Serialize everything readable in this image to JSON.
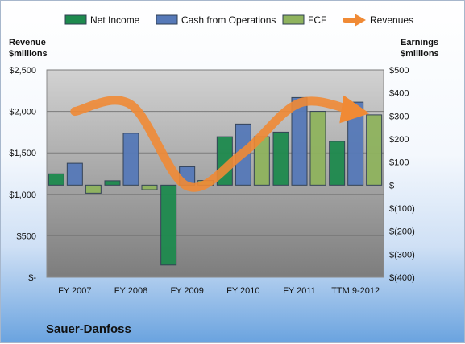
{
  "chart_data": {
    "type": "bar",
    "company": "Sauer-Danfoss",
    "categories": [
      "FY 2007",
      "FY 2008",
      "FY 2009",
      "FY 2010",
      "FY 2011",
      "TTM 9-2012"
    ],
    "series": [
      {
        "name": "Net Income",
        "axis": "right",
        "type": "bar",
        "color": "#1e8a4e",
        "values": [
          49,
          19,
          -347,
          210,
          230,
          190
        ]
      },
      {
        "name": "Cash from Operations",
        "axis": "right",
        "type": "bar",
        "color": "#5679b8",
        "values": [
          95,
          225,
          80,
          265,
          380,
          360
        ]
      },
      {
        "name": "FCF",
        "axis": "right",
        "type": "bar",
        "color": "#8fb35e",
        "values": [
          -35,
          -20,
          20,
          210,
          320,
          305
        ]
      },
      {
        "name": "Revenues",
        "axis": "left",
        "type": "line",
        "color": "#f08a35",
        "values": [
          2000,
          2080,
          1100,
          1500,
          2100,
          2000
        ]
      }
    ],
    "left_axis": {
      "title": [
        "Revenue",
        "$millions"
      ],
      "ylim": [
        0,
        2500
      ],
      "ticks": [
        0,
        500,
        1000,
        1500,
        2000,
        2500
      ],
      "tick_labels": [
        "$-",
        "$500",
        "$1,000",
        "$1,500",
        "$2,000",
        "$2,500"
      ]
    },
    "right_axis": {
      "title": [
        "Earnings",
        "$millions"
      ],
      "ylim": [
        -400,
        500
      ],
      "ticks": [
        500,
        400,
        300,
        200,
        100,
        0,
        -100,
        -200,
        -300,
        -400
      ],
      "tick_labels": [
        "$500",
        "$400",
        "$300",
        "$200",
        "$100",
        "$-",
        "$(100)",
        "$(200)",
        "$(300)",
        "$(400)"
      ]
    },
    "legend_position": "top",
    "grid": true
  }
}
